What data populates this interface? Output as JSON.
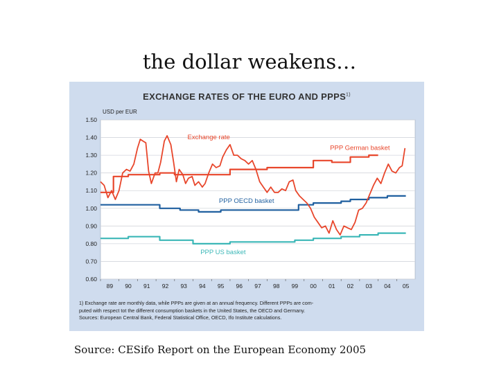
{
  "slide": {
    "title": "the dollar weakens…",
    "source": "Source: CESifo Report on the European Economy 2005"
  },
  "chart_data": {
    "type": "line",
    "title": "EXCHANGE RATES OF THE EURO AND PPPS",
    "title_note": "1)",
    "ylabel": "USD per EUR",
    "ylim": [
      0.6,
      1.5
    ],
    "yticks": [
      "1.50",
      "1.40",
      "1.30",
      "1.20",
      "1.10",
      "1.00",
      "0.90",
      "0.80",
      "0.70",
      "0.60"
    ],
    "xlim": [
      1988.5,
      2005.5
    ],
    "x_tick_labels": [
      "89",
      "90",
      "91",
      "92",
      "93",
      "94",
      "95",
      "96",
      "97",
      "98",
      "99",
      "00",
      "01",
      "02",
      "03",
      "04",
      "05"
    ],
    "grid": true,
    "colors": {
      "exchange": "#e8462b",
      "german": "#e8462b",
      "oecd": "#1f5f9f",
      "us": "#3bb7b7",
      "panel": "#cfdcee",
      "plot": "#ffffff"
    },
    "series": [
      {
        "name": "Exchange rate",
        "color": "#e8462b",
        "x": [
          1988.5,
          1988.7,
          1988.9,
          1989.1,
          1989.3,
          1989.5,
          1989.7,
          1989.9,
          1990.1,
          1990.3,
          1990.5,
          1990.65,
          1990.8,
          1990.95,
          1991.1,
          1991.25,
          1991.45,
          1991.6,
          1991.75,
          1991.95,
          1992.1,
          1992.3,
          1992.45,
          1992.6,
          1992.75,
          1992.95,
          1993.1,
          1993.25,
          1993.45,
          1993.6,
          1993.8,
          1994.0,
          1994.15,
          1994.35,
          1994.55,
          1994.75,
          1994.95,
          1995.1,
          1995.3,
          1995.5,
          1995.7,
          1995.9,
          1996.1,
          1996.3,
          1996.5,
          1996.7,
          1996.9,
          1997.1,
          1997.3,
          1997.5,
          1997.7,
          1997.9,
          1998.1,
          1998.3,
          1998.5,
          1998.7,
          1998.9,
          1999.05,
          1999.25,
          1999.45,
          1999.65,
          1999.85,
          2000.05,
          2000.25,
          2000.45,
          2000.65,
          2000.85,
          2001.05,
          2001.25,
          2001.45,
          2001.65,
          2001.85,
          2002.05,
          2002.25,
          2002.45,
          2002.65,
          2002.85,
          2003.05,
          2003.25,
          2003.45,
          2003.65,
          2003.85,
          2004.05,
          2004.25,
          2004.45,
          2004.65,
          2004.8,
          2004.95
        ],
        "y": [
          1.15,
          1.13,
          1.06,
          1.1,
          1.05,
          1.1,
          1.2,
          1.22,
          1.21,
          1.25,
          1.34,
          1.39,
          1.38,
          1.37,
          1.21,
          1.14,
          1.2,
          1.2,
          1.26,
          1.38,
          1.41,
          1.36,
          1.26,
          1.15,
          1.22,
          1.19,
          1.14,
          1.17,
          1.18,
          1.13,
          1.15,
          1.12,
          1.14,
          1.2,
          1.25,
          1.23,
          1.24,
          1.29,
          1.33,
          1.36,
          1.3,
          1.3,
          1.28,
          1.27,
          1.25,
          1.27,
          1.22,
          1.15,
          1.12,
          1.09,
          1.12,
          1.09,
          1.09,
          1.11,
          1.1,
          1.15,
          1.16,
          1.1,
          1.07,
          1.05,
          1.03,
          1.0,
          0.95,
          0.92,
          0.89,
          0.9,
          0.86,
          0.93,
          0.88,
          0.85,
          0.9,
          0.89,
          0.88,
          0.92,
          0.99,
          1.0,
          1.03,
          1.08,
          1.13,
          1.17,
          1.14,
          1.2,
          1.25,
          1.21,
          1.2,
          1.23,
          1.24,
          1.34
        ]
      },
      {
        "name": "PPP German basket",
        "color": "#e8462b",
        "x": [
          1988.5,
          1989.2,
          1989.2,
          1990.0,
          1990.0,
          1991.7,
          1991.7,
          1992.5,
          1992.5,
          1995.5,
          1995.5,
          1997.5,
          1997.5,
          2000.0,
          2000.0,
          2001.0,
          2001.0,
          2002.0,
          2002.0,
          2003.0,
          2003.0,
          2003.5
        ],
        "y": [
          1.09,
          1.09,
          1.18,
          1.18,
          1.19,
          1.19,
          1.2,
          1.2,
          1.19,
          1.19,
          1.22,
          1.22,
          1.23,
          1.23,
          1.27,
          1.27,
          1.26,
          1.26,
          1.29,
          1.29,
          1.3,
          1.3
        ]
      },
      {
        "name": "PPP OECD basket",
        "color": "#1f5f9f",
        "x": [
          1988.5,
          1991.7,
          1991.7,
          1992.8,
          1992.8,
          1993.8,
          1993.8,
          1995.0,
          1995.0,
          1999.2,
          1999.2,
          2000.0,
          2000.0,
          2001.5,
          2001.5,
          2002.0,
          2002.0,
          2003.0,
          2003.0,
          2004.0,
          2004.0,
          2005.0
        ],
        "y": [
          1.02,
          1.02,
          1.0,
          1.0,
          0.99,
          0.99,
          0.98,
          0.98,
          0.99,
          0.99,
          1.02,
          1.02,
          1.03,
          1.03,
          1.04,
          1.04,
          1.05,
          1.05,
          1.06,
          1.06,
          1.07,
          1.07
        ]
      },
      {
        "name": "PPP US basket",
        "color": "#3bb7b7",
        "x": [
          1988.5,
          1990.0,
          1990.0,
          1991.7,
          1991.7,
          1993.5,
          1993.5,
          1995.5,
          1995.5,
          1999.0,
          1999.0,
          2000.0,
          2000.0,
          2001.5,
          2001.5,
          2002.5,
          2002.5,
          2003.5,
          2003.5,
          2005.0
        ],
        "y": [
          0.83,
          0.83,
          0.84,
          0.84,
          0.82,
          0.82,
          0.8,
          0.8,
          0.81,
          0.81,
          0.82,
          0.82,
          0.83,
          0.83,
          0.84,
          0.84,
          0.85,
          0.85,
          0.86,
          0.86
        ]
      }
    ],
    "annotations": [
      {
        "text": "Exchange rate",
        "x": 1993.2,
        "y": 1.39,
        "color": "#e8462b"
      },
      {
        "text": "PPP German basket",
        "x": 2000.9,
        "y": 1.33,
        "color": "#e8462b"
      },
      {
        "text": "PPP OECD basket",
        "x": 1994.9,
        "y": 1.03,
        "color": "#1f5f9f"
      },
      {
        "text": "PPP US basket",
        "x": 1993.9,
        "y": 0.74,
        "color": "#3bb7b7"
      }
    ],
    "footnote_lines": [
      "1) Exchange rate are monthly data, while PPPs are given at an annual frequency. Different PPPs are com-",
      "puted with respect tot the different consumption baskets in the United States, the OECD and Germany.",
      "Sources: European Central Bank, Federal Statistical Office, OECD, Ifo Institute calculations."
    ]
  }
}
